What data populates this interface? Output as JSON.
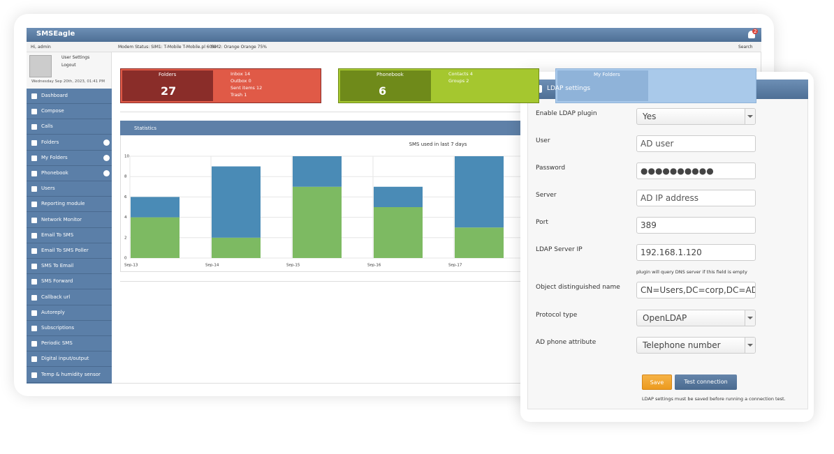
{
  "header": {
    "brand": "SMSEagle",
    "notifications": "2"
  },
  "topbar": {
    "greeting": "Hi, admin",
    "modem_status": "Modem Status: SIM1: T-Mobile T-Mobile.pl 60%",
    "sim2": "SIM2: Orange Orange 75%",
    "search": "Search"
  },
  "user": {
    "settings": "User Settings",
    "logout": "Logout",
    "date": "Wednesday Sep 20th, 2023, 01:41 PM"
  },
  "nav": [
    "Dashboard",
    "Compose",
    "Calls",
    "Folders",
    "My Folders",
    "Phonebook",
    "Users",
    "Reporting module",
    "Network Monitor",
    "Email To SMS",
    "Email To SMS Poller",
    "SMS To Email",
    "SMS Forward",
    "Callback url",
    "Autoreply",
    "Subscriptions",
    "Periodic SMS",
    "Digital input/output",
    "Temp & humidity sensor"
  ],
  "tiles": [
    {
      "title": "Folders",
      "count": 27,
      "items": [
        "Inbox 14",
        "Outbox 0",
        "Sent items 12",
        "Trash 1"
      ]
    },
    {
      "title": "Phonebook",
      "count": 6,
      "items": [
        "Contacts 4",
        "Groups 2"
      ]
    },
    {
      "title": "My Folders"
    }
  ],
  "statistics": {
    "title": "Statistics"
  },
  "chart_data": {
    "type": "bar",
    "stacked": true,
    "title": "SMS used in last 7 days",
    "categories": [
      "Sep-13",
      "Sep-14",
      "Sep-15",
      "Sep-16",
      "Sep-17"
    ],
    "series": [
      {
        "color": "#7dba62",
        "values": [
          4,
          2,
          7,
          5,
          3
        ]
      },
      {
        "color": "#4a8bb6",
        "values": [
          2,
          7,
          3,
          2,
          7
        ]
      }
    ],
    "ylim": [
      0,
      10
    ],
    "yticks": [
      0,
      2,
      4,
      6,
      8,
      10
    ],
    "grid": true
  },
  "ldap": {
    "title": "LDAP settings",
    "fields": [
      {
        "label": "Enable LDAP plugin",
        "value": "Yes",
        "kind": "select"
      },
      {
        "label": "User",
        "value": "AD user",
        "kind": "placeholder"
      },
      {
        "label": "Password",
        "value": "●●●●●●●●●●",
        "kind": "text"
      },
      {
        "label": "Server",
        "value": "AD IP address",
        "kind": "placeholder"
      },
      {
        "label": "Port",
        "value": "389",
        "kind": "text"
      },
      {
        "label": "LDAP Server IP",
        "value": "192.168.1.120",
        "kind": "text",
        "hint": "plugin will query DNS server if this field is empty"
      },
      {
        "label": "Object distinguished name",
        "value": "CN=Users,DC=corp,DC=ADdomain",
        "kind": "text"
      },
      {
        "label": "Protocol type",
        "value": "OpenLDAP",
        "kind": "select"
      },
      {
        "label": "AD phone attribute",
        "value": "Telephone number",
        "kind": "select"
      }
    ],
    "buttons": [
      "Save",
      "Test connection"
    ],
    "note": "LDAP settings must be saved before running a connection test."
  }
}
